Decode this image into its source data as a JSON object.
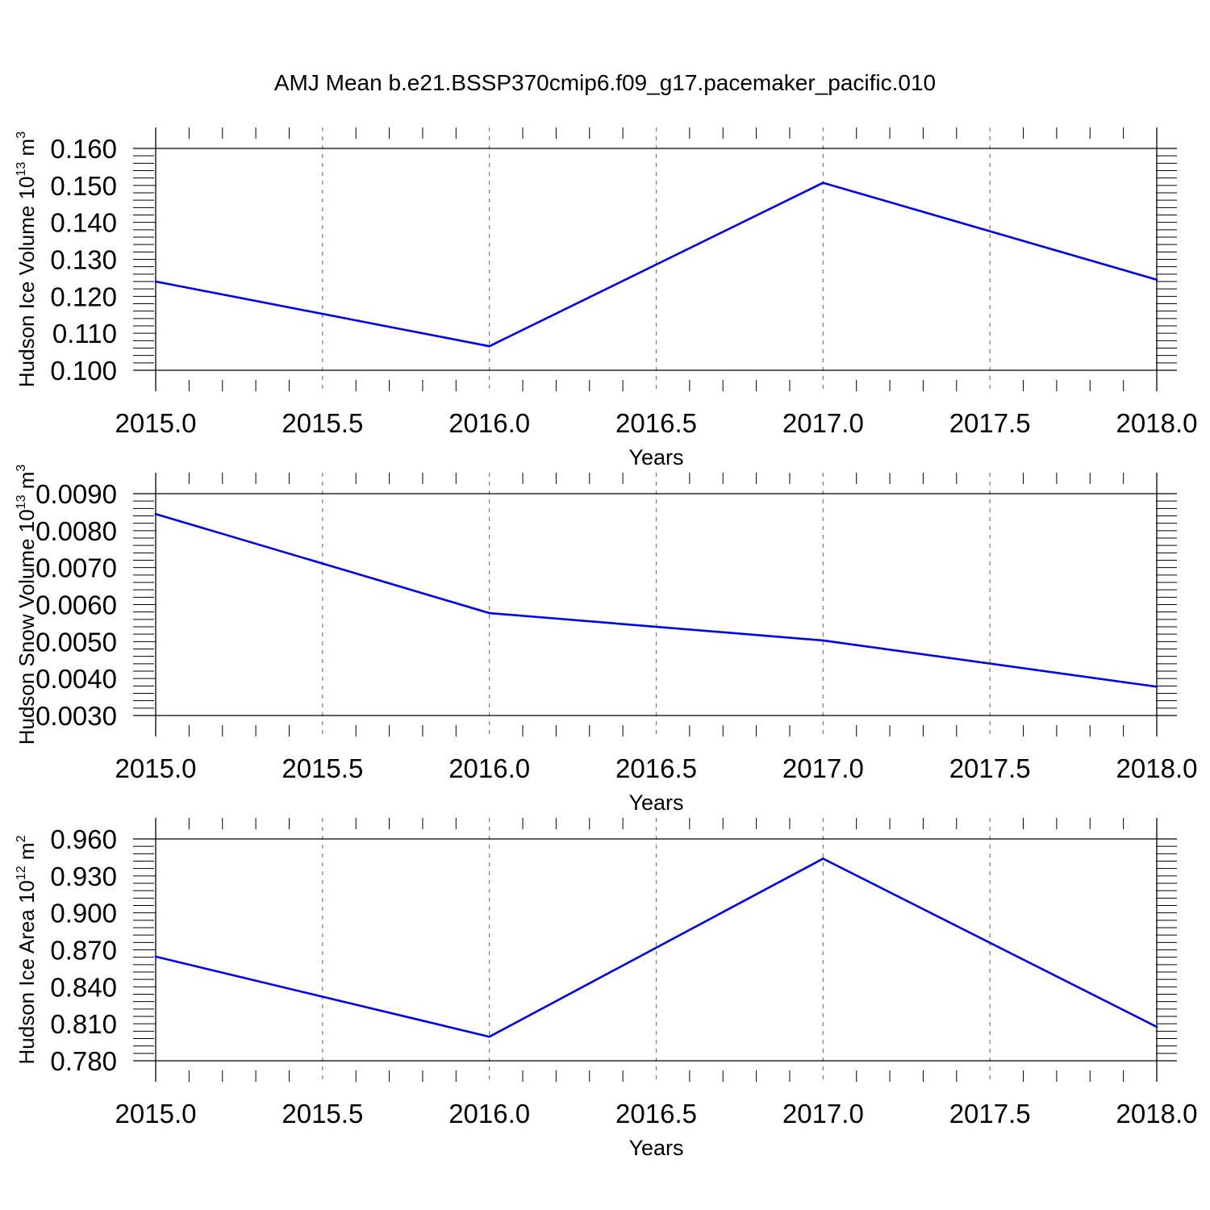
{
  "title": "AMJ Mean b.e21.BSSP370cmip6.f09_g17.pacemaker_pacific.010",
  "colors": {
    "line": "#0000ee",
    "axis": "#000000",
    "grid": "#7a7a7a"
  },
  "chart_data": [
    {
      "type": "line",
      "ylabel": {
        "text": "Hudson Ice Volume 10",
        "sup": "13",
        "unit": " m",
        "unit_sup": "3"
      },
      "xlabel": "Years",
      "xlim": [
        2015.0,
        2018.0
      ],
      "ylim": [
        0.1,
        0.16
      ],
      "xticks": [
        "2015.0",
        "2015.5",
        "2016.0",
        "2016.5",
        "2017.0",
        "2017.5",
        "2018.0"
      ],
      "yticks": [
        "0.100",
        "0.110",
        "0.120",
        "0.130",
        "0.140",
        "0.150",
        "0.160"
      ],
      "grid": "vertical dashed",
      "x": [
        2015,
        2016,
        2017,
        2018
      ],
      "values": [
        0.124,
        0.1065,
        0.1507,
        0.1245
      ]
    },
    {
      "type": "line",
      "ylabel": {
        "text": "Hudson Snow Volume 10",
        "sup": "13",
        "unit": " m",
        "unit_sup": "3"
      },
      "xlabel": "Years",
      "xlim": [
        2015.0,
        2018.0
      ],
      "ylim": [
        0.003,
        0.009
      ],
      "xticks": [
        "2015.0",
        "2015.5",
        "2016.0",
        "2016.5",
        "2017.0",
        "2017.5",
        "2018.0"
      ],
      "yticks": [
        "0.0030",
        "0.0040",
        "0.0050",
        "0.0060",
        "0.0070",
        "0.0080",
        "0.0090"
      ],
      "grid": "vertical dashed",
      "x": [
        2015,
        2016,
        2017,
        2018
      ],
      "values": [
        0.00845,
        0.00577,
        0.00503,
        0.00378
      ]
    },
    {
      "type": "line",
      "ylabel": {
        "text": "Hudson Ice Area 10",
        "sup": "12",
        "unit": " m",
        "unit_sup": "2"
      },
      "xlabel": "Years",
      "xlim": [
        2015.0,
        2018.0
      ],
      "ylim": [
        0.78,
        0.96
      ],
      "xticks": [
        "2015.0",
        "2015.5",
        "2016.0",
        "2016.5",
        "2017.0",
        "2017.5",
        "2018.0"
      ],
      "yticks": [
        "0.780",
        "0.810",
        "0.840",
        "0.870",
        "0.900",
        "0.930",
        "0.960"
      ],
      "grid": "vertical dashed",
      "x": [
        2015,
        2016,
        2017,
        2018
      ],
      "values": [
        0.8645,
        0.7995,
        0.944,
        0.8075
      ]
    }
  ]
}
